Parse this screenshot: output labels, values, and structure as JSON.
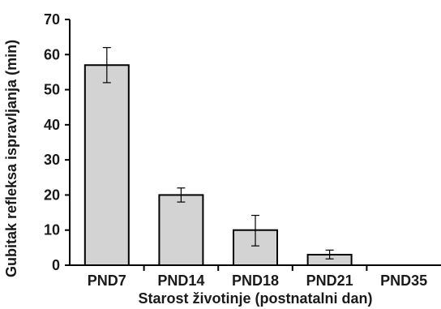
{
  "chart_data": {
    "type": "bar",
    "categories": [
      "PND7",
      "PND14",
      "PND18",
      "PND21",
      "PND35"
    ],
    "values": [
      57,
      20,
      10,
      3,
      0
    ],
    "error_low": [
      52,
      18,
      5.5,
      1.8,
      0
    ],
    "error_high": [
      62,
      22,
      14.2,
      4.3,
      0
    ],
    "xlabel": "Starost životinje (postnatalni dan)",
    "ylabel": "Gubitak refleksa ispravljanja (min)",
    "ylim": [
      0,
      70
    ],
    "yticks": [
      "0",
      "10",
      "20",
      "30",
      "40",
      "50",
      "60",
      "70"
    ],
    "grid": false,
    "bar_color": "#d3d3d3",
    "edge_color": "#000000"
  }
}
